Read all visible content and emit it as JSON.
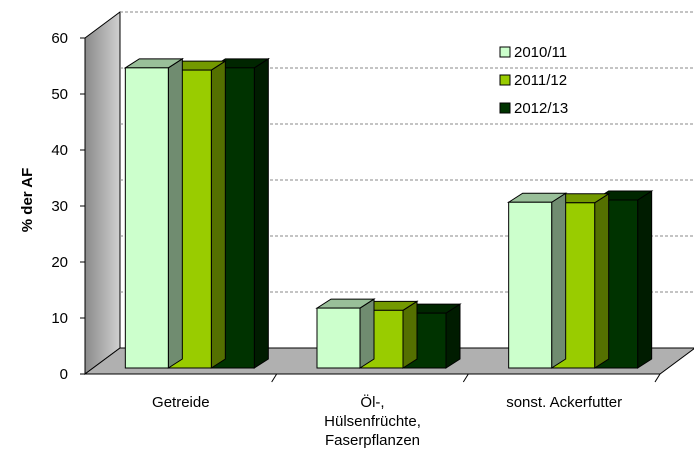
{
  "chart_data": {
    "type": "bar3d",
    "y_label": "% der AF",
    "categories": [
      "Getreide",
      "Öl-,\nHülsenfrüchte,\nFaserpflanzen",
      "sonst. Ackerfutter"
    ],
    "series": [
      {
        "name": "2010/11",
        "color": "#ccffcc",
        "values": [
          53.6,
          10.7,
          29.6
        ]
      },
      {
        "name": "2011/12",
        "color": "#99cc00",
        "values": [
          53.2,
          10.3,
          29.5
        ]
      },
      {
        "name": "2012/13",
        "color": "#003300",
        "values": [
          53.6,
          9.8,
          30.0
        ]
      }
    ],
    "ylim": [
      0,
      60
    ],
    "yticks": [
      0,
      10,
      20,
      30,
      40,
      50,
      60
    ],
    "grid": true,
    "legend": "upper right"
  }
}
